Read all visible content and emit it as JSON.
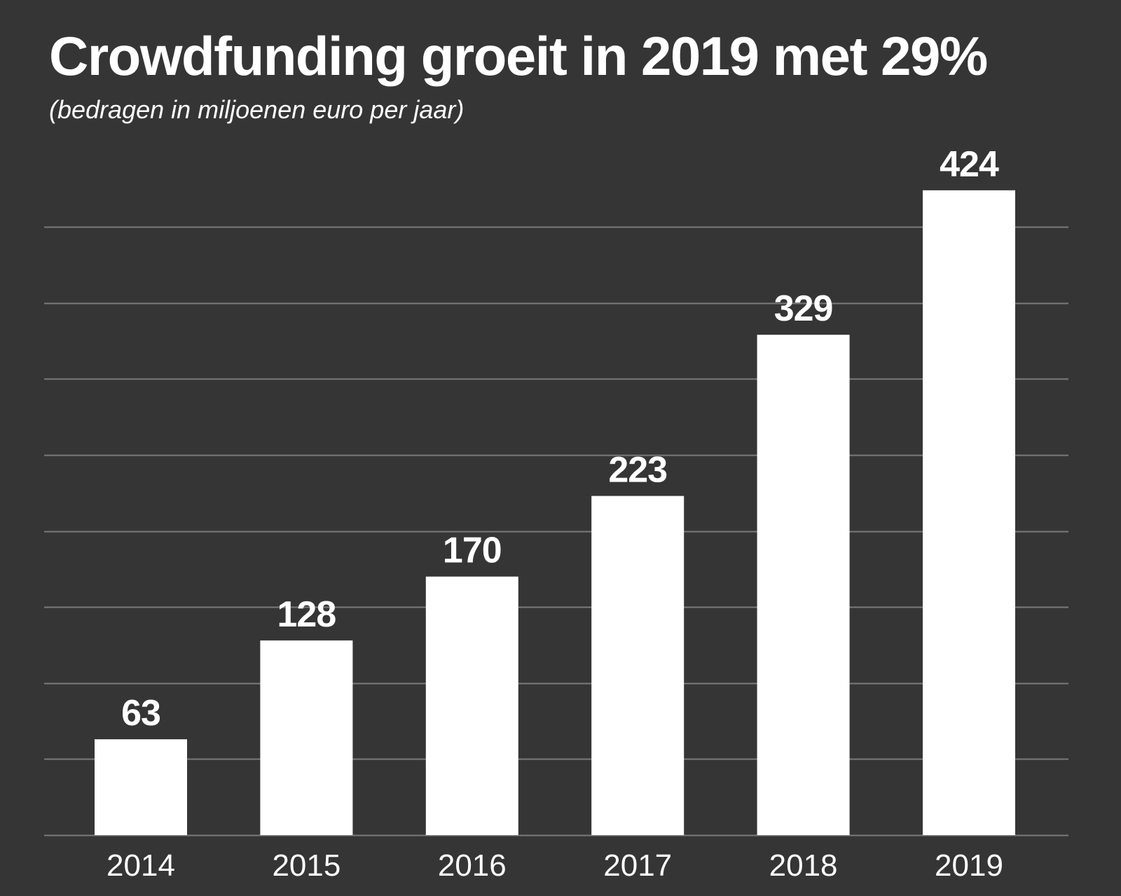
{
  "chart_data": {
    "type": "bar",
    "title": "Crowdfunding groeit in 2019 met 29%",
    "subtitle": "(bedragen in miljoenen euro per jaar)",
    "categories": [
      "2014",
      "2015",
      "2016",
      "2017",
      "2018",
      "2019"
    ],
    "values": [
      63,
      128,
      170,
      223,
      329,
      424
    ],
    "value_labels": [
      "63",
      "128",
      "170",
      "223",
      "329",
      "424"
    ],
    "xlabel": "",
    "ylabel": "",
    "ylim": [
      0,
      400
    ],
    "grid_step": 50,
    "grid": true,
    "y_tick_labels_visible": false,
    "legend": "none",
    "colors": {
      "background": "#353535",
      "bar": "#ffffff",
      "gridline": "#7a7a7a",
      "text": "#ffffff"
    }
  }
}
